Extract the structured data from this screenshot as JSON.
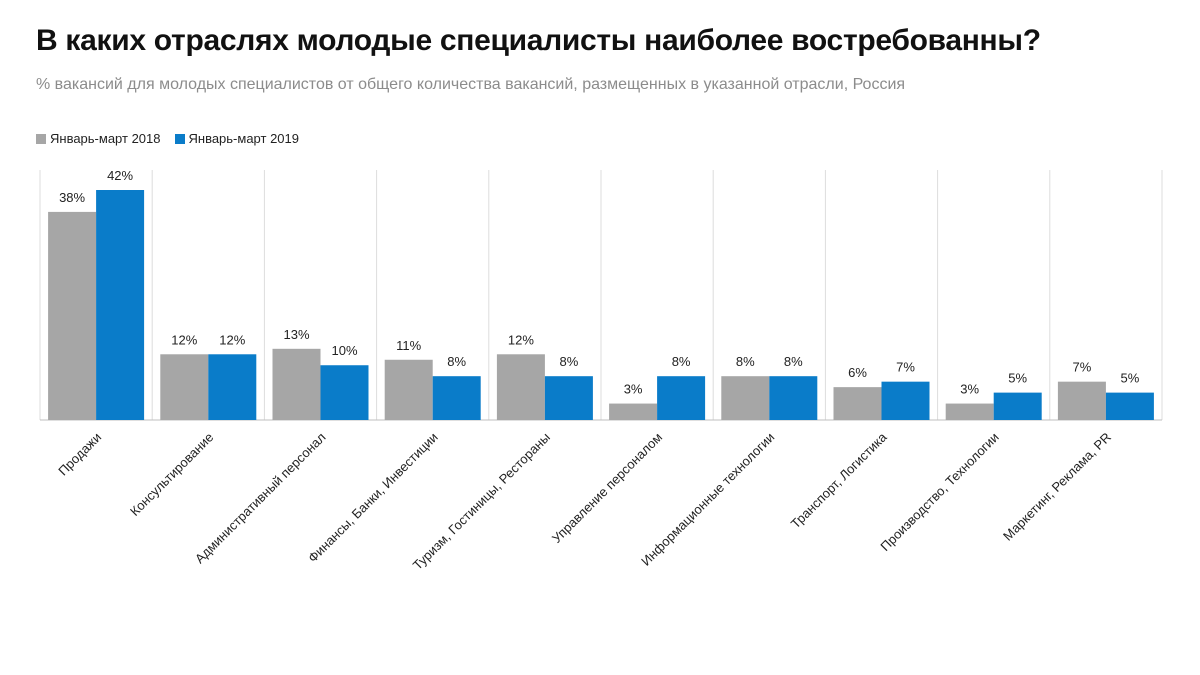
{
  "chart_data": {
    "type": "bar",
    "title": "В каких отраслях молодые специалисты наиболее востребованны?",
    "subtitle": "% вакансий для молодых специалистов от общего количества вакансий, размещенных в указанной отрасли, Россия",
    "categories": [
      "Продажи",
      "Консультирование",
      "Административный персонал",
      "Финансы, Банки, Инвестиции",
      "Туризм, Гостиницы, Рестораны",
      "Управление персоналом",
      "Информационные технологии",
      "Транспорт, Логистика",
      "Производство, Технологии",
      "Маркетинг, Реклама, PR"
    ],
    "series": [
      {
        "name": "Январь-март 2018",
        "color": "#a6a6a6",
        "values": [
          38,
          12,
          13,
          11,
          12,
          3,
          8,
          6,
          3,
          7
        ],
        "labels": [
          "38%",
          "12%",
          "13%",
          "11%",
          "12%",
          "3%",
          "8%",
          "6%",
          "3%",
          "7%"
        ]
      },
      {
        "name": "Январь-март 2019",
        "color": "#0a7cc9",
        "values": [
          42,
          12,
          10,
          8,
          8,
          8,
          8,
          7,
          5,
          5
        ],
        "labels": [
          "42%",
          "12%",
          "10%",
          "8%",
          "8%",
          "8%",
          "8%",
          "7%",
          "5%",
          "5%"
        ]
      }
    ],
    "ylim": [
      0,
      42
    ],
    "legend_position": "top-left",
    "grid": false
  }
}
